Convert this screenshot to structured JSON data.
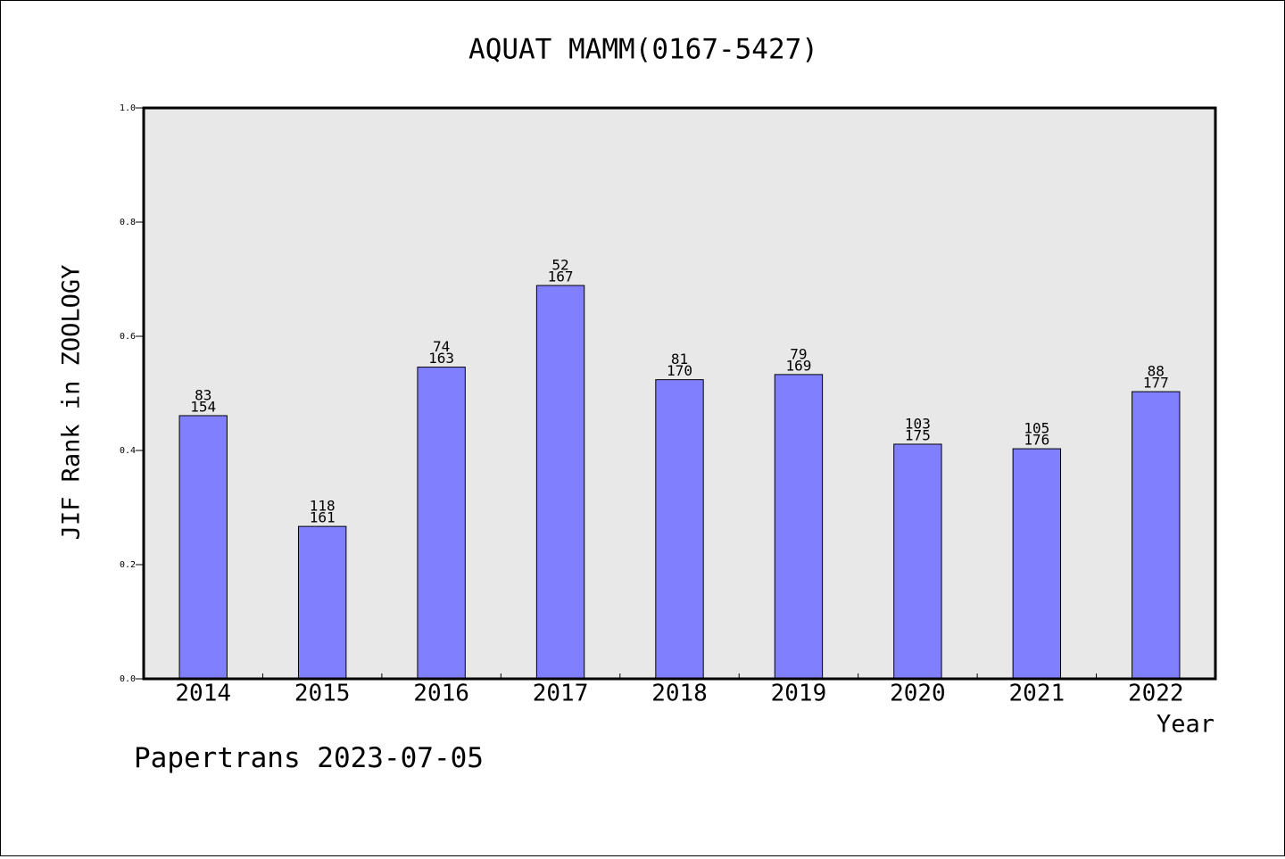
{
  "chart_data": {
    "type": "bar",
    "title": "AQUAT MAMM(0167-5427)",
    "xlabel": "Year",
    "ylabel": "JIF Rank in ZOOLOGY",
    "categories": [
      "2014",
      "2015",
      "2016",
      "2017",
      "2018",
      "2019",
      "2020",
      "2021",
      "2022"
    ],
    "values": [
      0.461,
      0.267,
      0.546,
      0.689,
      0.524,
      0.533,
      0.411,
      0.403,
      0.503
    ],
    "rank": [
      "83",
      "118",
      "74",
      "52",
      "81",
      "79",
      "103",
      "105",
      "88"
    ],
    "total": [
      "154",
      "161",
      "163",
      "167",
      "170",
      "169",
      "175",
      "176",
      "177"
    ],
    "ylim": [
      0,
      1.0
    ],
    "yticks": [
      "0.0",
      "0.2",
      "0.4",
      "0.6",
      "0.8",
      "1.0"
    ],
    "grid": false,
    "legend": "none",
    "colors": {
      "bar": "#8080ff",
      "plot_background": "#e8e8e8",
      "axis": "#000000"
    }
  },
  "footer": "Papertrans 2023-07-05"
}
